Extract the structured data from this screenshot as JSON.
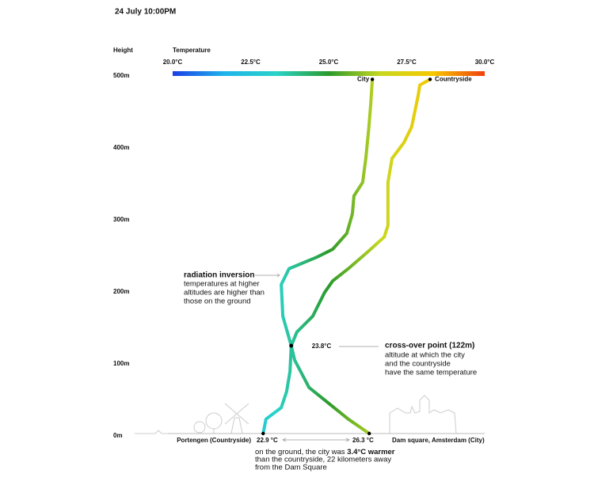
{
  "chart_data": {
    "type": "line",
    "title": "24 July 10:00PM",
    "y_label": "Height",
    "x_label": "Temperature",
    "xlim": [
      20,
      30
    ],
    "xticks": [
      {
        "value": 20,
        "label": "20.0°C"
      },
      {
        "value": 22.5,
        "label": "22.5°C"
      },
      {
        "value": 25,
        "label": "25.0°C"
      },
      {
        "value": 27.5,
        "label": "27.5°C"
      },
      {
        "value": 30,
        "label": "30.0°C"
      }
    ],
    "ylim": [
      0,
      500
    ],
    "yticks": [
      {
        "value": 0,
        "label": "0m"
      },
      {
        "value": 100,
        "label": "100m"
      },
      {
        "value": 200,
        "label": "200m"
      },
      {
        "value": 300,
        "label": "300m"
      },
      {
        "value": 400,
        "label": "400m"
      },
      {
        "value": 500,
        "label": "500m"
      }
    ],
    "colormap": [
      "#1a3ee6",
      "#1fb4ea",
      "#29d3c8",
      "#2b9a2b",
      "#c8d820",
      "#f6c800",
      "#f0400c"
    ],
    "series": [
      {
        "name": "City",
        "x": [
          26.3,
          25.63,
          24.37,
          23.91,
          23.8,
          23.53,
          23.48,
          23.73,
          24.62,
          25.13,
          25.58,
          25.76,
          25.81,
          26.09,
          26.19,
          26.29,
          26.35,
          26.4
        ],
        "values": [
          0,
          20,
          64,
          102,
          122,
          163,
          207,
          229,
          245,
          256,
          278,
          305,
          330,
          349,
          382,
          426,
          459,
          492
        ]
      },
      {
        "name": "Countryside",
        "x": [
          22.9,
          22.99,
          23.48,
          23.65,
          23.76,
          23.8,
          23.98,
          24.49,
          24.87,
          25.13,
          25.63,
          26.27,
          26.78,
          26.9,
          26.9,
          27.03,
          27.41,
          27.66,
          27.87,
          27.92,
          28.25
        ],
        "values": [
          0,
          20,
          36,
          58,
          86,
          122,
          141,
          163,
          196,
          212,
          229,
          253,
          273,
          289,
          349,
          382,
          404,
          426,
          470,
          484,
          492
        ]
      }
    ],
    "crossover": {
      "x": 23.8,
      "y": 122,
      "label": "23.8°C",
      "title": "cross-over point (122m)",
      "lines": [
        "altitude at which the city",
        "and the countryside",
        "have the same temperature"
      ]
    },
    "inversion": {
      "title": "radiation inversion",
      "lines": [
        "temperatures at higher",
        "altitudes are higher than",
        "those on the ground"
      ]
    },
    "ground_labels": {
      "countryside_place": "Portengen (Countryside)",
      "countryside_temp": "22.9 °C",
      "city_temp": "26.3 °C",
      "city_place": "Dam square, Amsterdam (City)"
    },
    "ground_note": {
      "before": "on the ground, the city was ",
      "bold": "3.4°C warmer",
      "lines": [
        "than the countryside, 22 kilometers away",
        "from the Dam Square"
      ]
    }
  }
}
